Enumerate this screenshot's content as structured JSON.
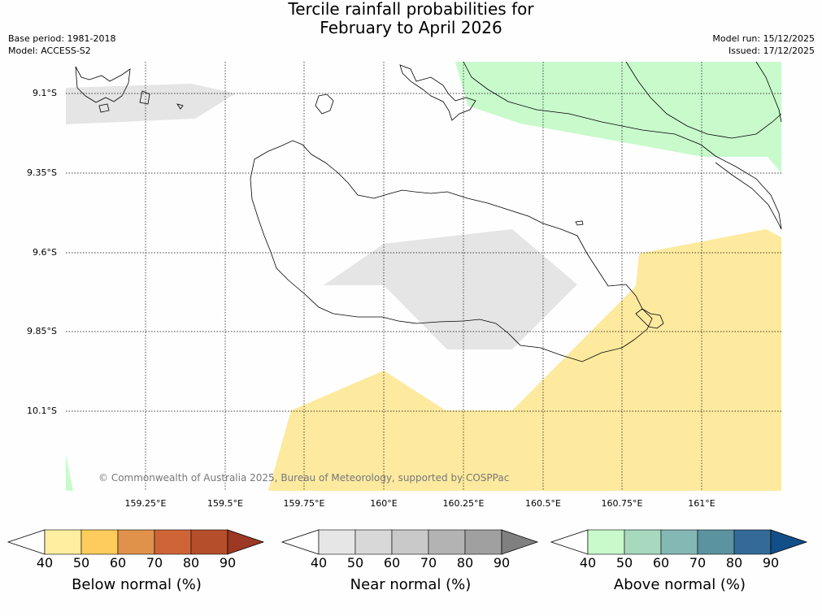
{
  "title_line1": "Tercile rainfall probabilities for",
  "title_line2": "February to April 2026",
  "base_period": "Base period: 1981-2018",
  "model": "Model: ACCESS-S2",
  "model_run": "Model run: 15/12/2025",
  "issued": "Issued: 17/12/2025",
  "credit": "© Commonwealth of Australia 2025, Bureau of Meteorology, supported by COSPPac",
  "latitudes": [
    "9.1°S",
    "9.35°S",
    "9.6°S",
    "9.85°S",
    "10.1°S"
  ],
  "longitudes": [
    "159.25°E",
    "159.5°E",
    "159.75°E",
    "160°E",
    "160.25°E",
    "160.5°E",
    "160.75°E",
    "161°E"
  ],
  "colorbars": [
    {
      "label": "Below normal (%)",
      "ticks": [
        "40",
        "50",
        "60",
        "70",
        "80",
        "90"
      ],
      "colors": [
        "#ffeda0",
        "#fecc5c",
        "#e0924a",
        "#cf6537",
        "#b44e2b"
      ],
      "extend_color": "#9c3823"
    },
    {
      "label": "Near normal (%)",
      "ticks": [
        "40",
        "50",
        "60",
        "70",
        "80",
        "90"
      ],
      "colors": [
        "#e6e6e6",
        "#d8d8d8",
        "#c9c9c9",
        "#b3b3b3",
        "#a0a0a0"
      ],
      "extend_color": "#808080"
    },
    {
      "label": "Above normal (%)",
      "ticks": [
        "40",
        "50",
        "60",
        "70",
        "80",
        "90"
      ],
      "colors": [
        "#c8facc",
        "#a6d9be",
        "#84b8b4",
        "#5b93a0",
        "#336a98"
      ],
      "extend_color": "#124f88"
    }
  ],
  "colors": {
    "below_normal_region": "#fdea9f",
    "near_normal_region": "#e5e5e5",
    "above_normal_region": "#c8facc",
    "coastline": "#000000"
  }
}
